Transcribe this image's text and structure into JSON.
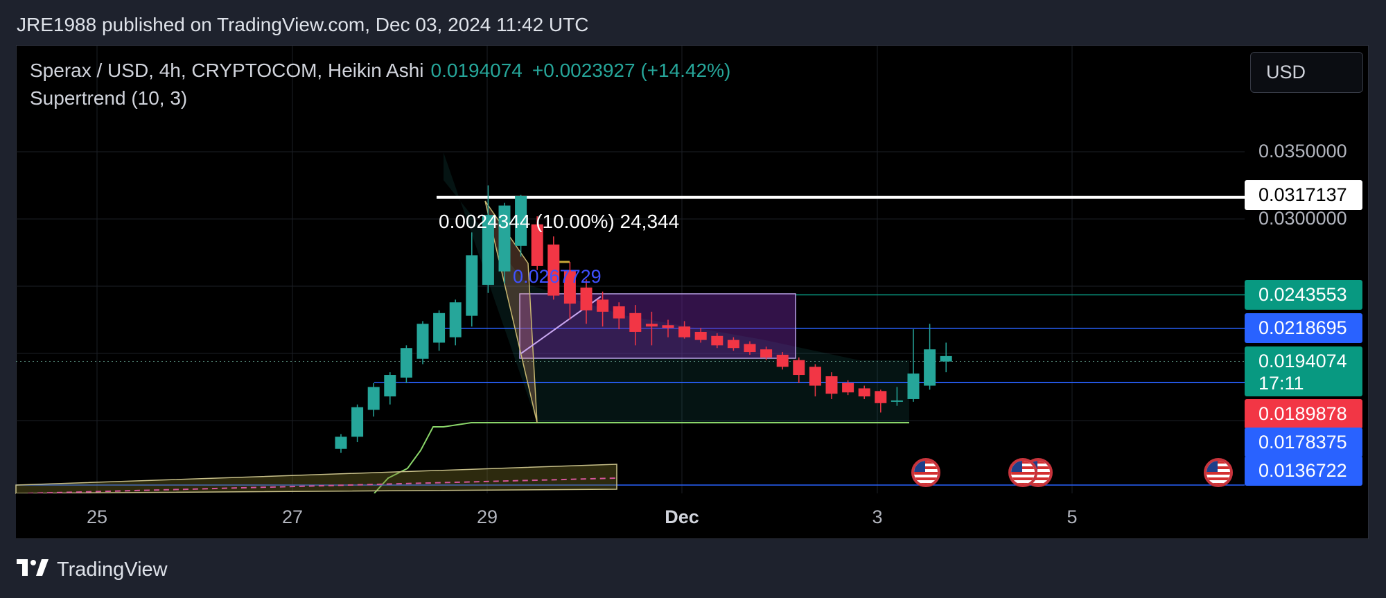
{
  "header": {
    "published_line": "JRE1988 published on TradingView.com, Dec 03, 2024 11:42 UTC"
  },
  "legend": {
    "symbol": "Sperax / USD, 4h, CRYPTOCOM, Heikin Ashi",
    "last_price": "0.0194074",
    "change": "+0.0023927 (+14.42%)",
    "indicator": "Supertrend (10, 3)"
  },
  "currency_button": "USD",
  "y_axis": {
    "ticks": [
      "0.0350000",
      "0.0300000"
    ]
  },
  "price_tags": {
    "measure_high": "0.0317137",
    "teal_level": "0.0243553",
    "blue_level_1": "0.0218695",
    "last_price": "0.0194074",
    "countdown": "17:11",
    "red_level": "0.0189878",
    "blue_level_2": "0.0178375",
    "blue_level_3": "0.0136722"
  },
  "x_axis": {
    "ticks": [
      "25",
      "27",
      "29",
      "Dec",
      "3",
      "5"
    ]
  },
  "annotations": {
    "measure_label": "0.0024344 (10.00%) 24,344",
    "fib_label": "0.0267729"
  },
  "footer": {
    "brand": "TradingView"
  },
  "colors": {
    "up": "#26a69a",
    "down": "#f23645",
    "background": "#000000",
    "panel": "#1e222d"
  },
  "chart_data": {
    "type": "candlestick",
    "title": "Sperax / USD, 4h, CRYPTOCOM, Heikin Ashi",
    "x_ticks": [
      "25",
      "27",
      "29",
      "Dec",
      "3",
      "5"
    ],
    "ylim": [
      0.0125,
      0.0375
    ],
    "candles": [
      {
        "o": 0.0129,
        "h": 0.014,
        "l": 0.0126,
        "c": 0.0138
      },
      {
        "o": 0.0138,
        "h": 0.0162,
        "l": 0.0134,
        "c": 0.016
      },
      {
        "o": 0.0158,
        "h": 0.0178,
        "l": 0.0153,
        "c": 0.0175
      },
      {
        "o": 0.0168,
        "h": 0.0186,
        "l": 0.0162,
        "c": 0.0184
      },
      {
        "o": 0.0182,
        "h": 0.0206,
        "l": 0.0178,
        "c": 0.0204
      },
      {
        "o": 0.0196,
        "h": 0.0224,
        "l": 0.0192,
        "c": 0.0222
      },
      {
        "o": 0.0208,
        "h": 0.0232,
        "l": 0.0202,
        "c": 0.023
      },
      {
        "o": 0.0212,
        "h": 0.024,
        "l": 0.0206,
        "c": 0.0238
      },
      {
        "o": 0.0228,
        "h": 0.029,
        "l": 0.022,
        "c": 0.0273
      },
      {
        "o": 0.0251,
        "h": 0.0325,
        "l": 0.0245,
        "c": 0.0303
      },
      {
        "o": 0.0261,
        "h": 0.0312,
        "l": 0.0252,
        "c": 0.031
      },
      {
        "o": 0.028,
        "h": 0.0318,
        "l": 0.0272,
        "c": 0.0317
      },
      {
        "o": 0.0296,
        "h": 0.0302,
        "l": 0.0262,
        "c": 0.0265
      },
      {
        "o": 0.0281,
        "h": 0.0287,
        "l": 0.024,
        "c": 0.0243
      },
      {
        "o": 0.0262,
        "h": 0.0268,
        "l": 0.0225,
        "c": 0.0237
      },
      {
        "o": 0.0249,
        "h": 0.0255,
        "l": 0.0222,
        "c": 0.0232
      },
      {
        "o": 0.024,
        "h": 0.0246,
        "l": 0.022,
        "c": 0.0231
      },
      {
        "o": 0.0235,
        "h": 0.0238,
        "l": 0.0218,
        "c": 0.0226
      },
      {
        "o": 0.023,
        "h": 0.0236,
        "l": 0.0206,
        "c": 0.0216
      },
      {
        "o": 0.0222,
        "h": 0.0231,
        "l": 0.0206,
        "c": 0.022
      },
      {
        "o": 0.0221,
        "h": 0.0225,
        "l": 0.0212,
        "c": 0.0219
      },
      {
        "o": 0.022,
        "h": 0.0224,
        "l": 0.0211,
        "c": 0.0212
      },
      {
        "o": 0.0216,
        "h": 0.0219,
        "l": 0.0208,
        "c": 0.021
      },
      {
        "o": 0.0213,
        "h": 0.0215,
        "l": 0.0204,
        "c": 0.0206
      },
      {
        "o": 0.021,
        "h": 0.0212,
        "l": 0.0202,
        "c": 0.0204
      },
      {
        "o": 0.0207,
        "h": 0.0209,
        "l": 0.0199,
        "c": 0.0201
      },
      {
        "o": 0.0203,
        "h": 0.0205,
        "l": 0.0195,
        "c": 0.0197
      },
      {
        "o": 0.0199,
        "h": 0.0201,
        "l": 0.0188,
        "c": 0.019
      },
      {
        "o": 0.0195,
        "h": 0.0197,
        "l": 0.0178,
        "c": 0.0184
      },
      {
        "o": 0.019,
        "h": 0.0192,
        "l": 0.0168,
        "c": 0.0176
      },
      {
        "o": 0.0183,
        "h": 0.0186,
        "l": 0.0166,
        "c": 0.017
      },
      {
        "o": 0.0178,
        "h": 0.018,
        "l": 0.0169,
        "c": 0.0171
      },
      {
        "o": 0.0174,
        "h": 0.0176,
        "l": 0.0166,
        "c": 0.0168
      },
      {
        "o": 0.0172,
        "h": 0.0173,
        "l": 0.0156,
        "c": 0.0163
      },
      {
        "o": 0.0164,
        "h": 0.0175,
        "l": 0.0161,
        "c": 0.0165
      },
      {
        "o": 0.0166,
        "h": 0.0218,
        "l": 0.0164,
        "c": 0.0185
      },
      {
        "o": 0.0176,
        "h": 0.0222,
        "l": 0.0173,
        "c": 0.0203
      },
      {
        "o": 0.0194,
        "h": 0.0208,
        "l": 0.0186,
        "c": 0.0198
      }
    ],
    "levels": [
      0.0317137,
      0.0243553,
      0.0218695,
      0.0194074,
      0.0189878,
      0.0178375,
      0.0136722
    ]
  }
}
